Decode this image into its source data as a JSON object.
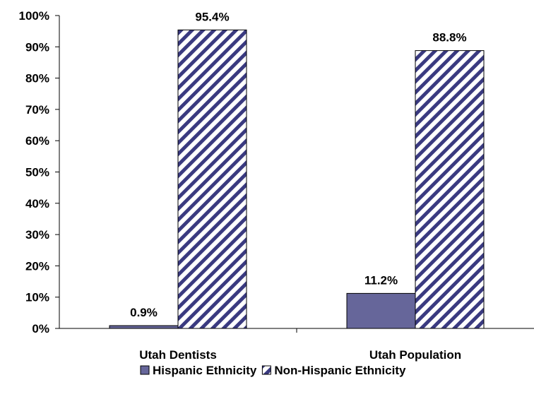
{
  "chart_data": {
    "type": "bar",
    "categories": [
      "Utah Dentists",
      "Utah Population"
    ],
    "series": [
      {
        "name": "Hispanic Ethnicity",
        "values": [
          0.9,
          11.2
        ],
        "data_labels": [
          "0.9%",
          "11.2%"
        ],
        "fill": "#66669a",
        "pattern": "solid"
      },
      {
        "name": "Non-Hispanic Ethnicity",
        "values": [
          95.4,
          88.8
        ],
        "data_labels": [
          "95.4%",
          "88.8%"
        ],
        "fill": "#ffffff",
        "stripe_color": "#3a3a80",
        "pattern": "diagonal-stripes"
      }
    ],
    "ylim": [
      0,
      100
    ],
    "y_ticks": [
      "0%",
      "10%",
      "20%",
      "30%",
      "40%",
      "50%",
      "60%",
      "70%",
      "80%",
      "90%",
      "100%"
    ],
    "grid": false,
    "legend_position": "bottom-center",
    "xlabel": "",
    "ylabel": "",
    "title": ""
  }
}
